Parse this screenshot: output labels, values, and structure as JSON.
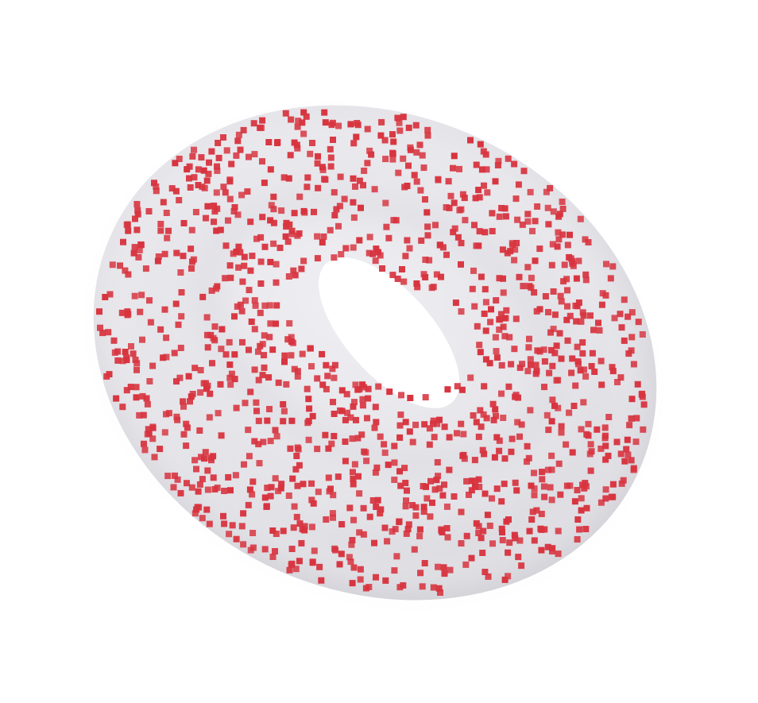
{
  "scene": {
    "surface_type": "torus",
    "surface_color": "#e4e3e8",
    "surface_shadow_color": "#d2d1d7",
    "surface_highlight_color": "#efeef2",
    "marker_shape": "square",
    "marker_color": "#d7343f",
    "marker_count": 1200,
    "background_color": "#ffffff"
  }
}
